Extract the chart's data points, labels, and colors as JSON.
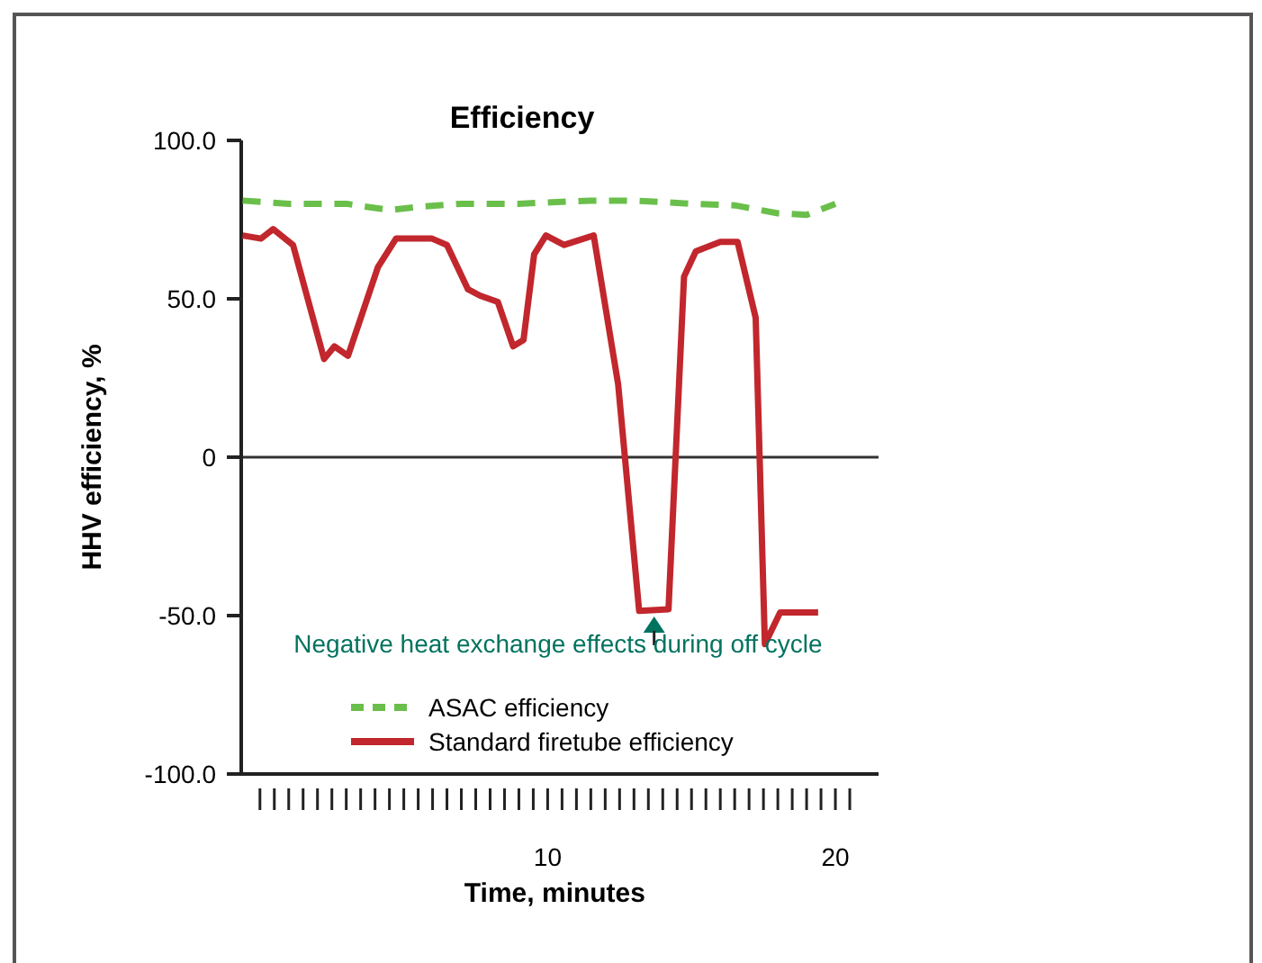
{
  "chart_data": {
    "type": "line",
    "title": "Efficiency",
    "xlabel": "Time, minutes",
    "ylabel": "HHV efficiency, %",
    "xlim": [
      -0.65,
      21.5
    ],
    "ylim": [
      -100,
      100
    ],
    "xticks": [
      {
        "value": 0,
        "label": null
      },
      {
        "value": 0.5,
        "label": null
      },
      {
        "value": 1,
        "label": null
      },
      {
        "value": 1.5,
        "label": null
      },
      {
        "value": 2,
        "label": null
      },
      {
        "value": 2.5,
        "label": null
      },
      {
        "value": 3,
        "label": null
      },
      {
        "value": 3.5,
        "label": null
      },
      {
        "value": 4,
        "label": null
      },
      {
        "value": 4.5,
        "label": null
      },
      {
        "value": 5,
        "label": null
      },
      {
        "value": 5.5,
        "label": null
      },
      {
        "value": 6,
        "label": null
      },
      {
        "value": 6.5,
        "label": null
      },
      {
        "value": 7,
        "label": null
      },
      {
        "value": 7.5,
        "label": null
      },
      {
        "value": 8,
        "label": null
      },
      {
        "value": 8.5,
        "label": null
      },
      {
        "value": 9,
        "label": null
      },
      {
        "value": 9.5,
        "label": null
      },
      10,
      {
        "value": 10.5,
        "label": null
      },
      {
        "value": 11,
        "label": null
      },
      {
        "value": 11.5,
        "label": null
      },
      {
        "value": 12,
        "label": null
      },
      {
        "value": 12.5,
        "label": null
      },
      {
        "value": 13,
        "label": null
      },
      {
        "value": 13.5,
        "label": null
      },
      {
        "value": 14,
        "label": null
      },
      {
        "value": 14.5,
        "label": null
      },
      {
        "value": 15,
        "label": null
      },
      {
        "value": 15.5,
        "label": null
      },
      {
        "value": 16,
        "label": null
      },
      {
        "value": 16.5,
        "label": null
      },
      {
        "value": 17,
        "label": null
      },
      {
        "value": 17.5,
        "label": null
      },
      {
        "value": 18,
        "label": null
      },
      {
        "value": 18.5,
        "label": null
      },
      {
        "value": 19,
        "label": null
      },
      {
        "value": 19.5,
        "label": null
      },
      20,
      {
        "value": 20.5,
        "label": null
      }
    ],
    "yticks": [
      {
        "value": -100,
        "label": "-100.0"
      },
      {
        "value": -50,
        "label": "-50.0"
      },
      {
        "value": 0,
        "label": "0"
      },
      {
        "value": 50,
        "label": "50.0"
      },
      {
        "value": 100,
        "label": "100.0"
      }
    ],
    "ref_lines": [
      {
        "axis": "y",
        "value": 0,
        "color": "#333333"
      }
    ],
    "annotations": [
      {
        "text": "Negative heat exchange effects during off cycle",
        "x": 13.7,
        "y": -48
      }
    ],
    "legend": "bottom",
    "marker": "none",
    "grid": false,
    "series": [
      {
        "name": "ASAC efficiency",
        "color": "#6abf4b",
        "line_style": "dashed",
        "x": [
          -0.6,
          1,
          3,
          4.5,
          5.5,
          7,
          9,
          11.5,
          13,
          15,
          16.5,
          18,
          19,
          20
        ],
        "values": [
          81,
          80,
          80,
          78,
          79,
          80,
          80,
          81,
          81,
          80,
          79.5,
          77,
          76.5,
          80
        ]
      },
      {
        "name": "Standard firetube efficiency",
        "color": "#c1272d",
        "line_style": "solid",
        "x": [
          -0.6,
          0.04,
          0.46,
          1.15,
          2.23,
          2.59,
          3.06,
          4.1,
          4.73,
          5.98,
          6.5,
          7.23,
          7.65,
          8.27,
          8.8,
          9.16,
          9.53,
          9.94,
          10.57,
          11.6,
          12.45,
          13.18,
          14.2,
          14.74,
          15.15,
          16,
          16.6,
          17.23,
          17.55,
          18.08,
          19.4
        ],
        "values": [
          70,
          69,
          72,
          67,
          31,
          35,
          32,
          60,
          69,
          69,
          67,
          53,
          51,
          49,
          35,
          37,
          64,
          70,
          67,
          70,
          23,
          -48.5,
          -48,
          57,
          65,
          68,
          68,
          44,
          -59,
          -49,
          -49
        ]
      }
    ]
  }
}
